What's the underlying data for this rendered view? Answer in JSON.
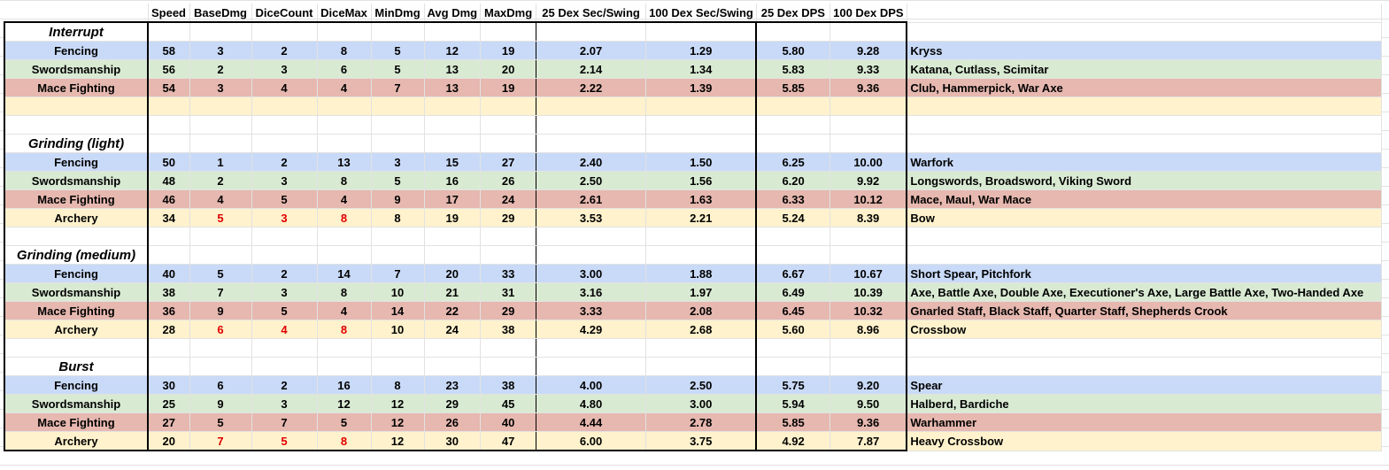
{
  "headers": [
    "",
    "Speed",
    "BaseDmg",
    "DiceCount",
    "DiceMax",
    "MinDmg",
    "Avg Dmg",
    "MaxDmg",
    "25 Dex Sec/Swing",
    "100 Dex Sec/Swing",
    "25 Dex DPS",
    "100 Dex DPS",
    ""
  ],
  "sections": [
    {
      "title": "Interrupt",
      "rows": [
        {
          "skill": "Fencing",
          "speed": "58",
          "base": "3",
          "count": "2",
          "max": "8",
          "min": "5",
          "avg": "12",
          "maxdmg": "19",
          "s25": "2.07",
          "s100": "1.29",
          "d25": "5.80",
          "d100": "9.28",
          "weapons": "Kryss"
        },
        {
          "skill": "Swordsmanship",
          "speed": "56",
          "base": "2",
          "count": "3",
          "max": "6",
          "min": "5",
          "avg": "13",
          "maxdmg": "20",
          "s25": "2.14",
          "s100": "1.34",
          "d25": "5.83",
          "d100": "9.33",
          "weapons": "Katana, Cutlass, Scimitar"
        },
        {
          "skill": "Mace Fighting",
          "speed": "54",
          "base": "3",
          "count": "4",
          "max": "4",
          "min": "7",
          "avg": "13",
          "maxdmg": "19",
          "s25": "2.22",
          "s100": "1.39",
          "d25": "5.85",
          "d100": "9.36",
          "weapons": "Club, Hammerpick, War Axe"
        },
        {
          "skill": "",
          "speed": "",
          "base": "",
          "count": "",
          "max": "",
          "min": "",
          "avg": "",
          "maxdmg": "",
          "s25": "",
          "s100": "",
          "d25": "",
          "d100": "",
          "weapons": ""
        }
      ]
    },
    {
      "title": "Grinding (light)",
      "rows": [
        {
          "skill": "Fencing",
          "speed": "50",
          "base": "1",
          "count": "2",
          "max": "13",
          "min": "3",
          "avg": "15",
          "maxdmg": "27",
          "s25": "2.40",
          "s100": "1.50",
          "d25": "6.25",
          "d100": "10.00",
          "weapons": "Warfork"
        },
        {
          "skill": "Swordsmanship",
          "speed": "48",
          "base": "2",
          "count": "3",
          "max": "8",
          "min": "5",
          "avg": "16",
          "maxdmg": "26",
          "s25": "2.50",
          "s100": "1.56",
          "d25": "6.20",
          "d100": "9.92",
          "weapons": "Longswords, Broadsword, Viking Sword"
        },
        {
          "skill": "Mace Fighting",
          "speed": "46",
          "base": "4",
          "count": "5",
          "max": "4",
          "min": "9",
          "avg": "17",
          "maxdmg": "24",
          "s25": "2.61",
          "s100": "1.63",
          "d25": "6.33",
          "d100": "10.12",
          "weapons": "Mace, Maul, War Mace"
        },
        {
          "skill": "Archery",
          "speed": "34",
          "base": "5",
          "count": "3",
          "max": "8",
          "min": "8",
          "avg": "19",
          "maxdmg": "29",
          "s25": "3.53",
          "s100": "2.21",
          "d25": "5.24",
          "d100": "8.39",
          "weapons": "Bow"
        }
      ]
    },
    {
      "title": "Grinding (medium)",
      "rows": [
        {
          "skill": "Fencing",
          "speed": "40",
          "base": "5",
          "count": "2",
          "max": "14",
          "min": "7",
          "avg": "20",
          "maxdmg": "33",
          "s25": "3.00",
          "s100": "1.88",
          "d25": "6.67",
          "d100": "10.67",
          "weapons": "Short Spear, Pitchfork"
        },
        {
          "skill": "Swordsmanship",
          "speed": "38",
          "base": "7",
          "count": "3",
          "max": "8",
          "min": "10",
          "avg": "21",
          "maxdmg": "31",
          "s25": "3.16",
          "s100": "1.97",
          "d25": "6.49",
          "d100": "10.39",
          "weapons": "Axe, Battle Axe, Double Axe, Executioner's Axe, Large Battle Axe, Two-Handed Axe"
        },
        {
          "skill": "Mace Fighting",
          "speed": "36",
          "base": "9",
          "count": "5",
          "max": "4",
          "min": "14",
          "avg": "22",
          "maxdmg": "29",
          "s25": "3.33",
          "s100": "2.08",
          "d25": "6.45",
          "d100": "10.32",
          "weapons": "Gnarled Staff, Black Staff, Quarter Staff, Shepherds Crook"
        },
        {
          "skill": "Archery",
          "speed": "28",
          "base": "6",
          "count": "4",
          "max": "8",
          "min": "10",
          "avg": "24",
          "maxdmg": "38",
          "s25": "4.29",
          "s100": "2.68",
          "d25": "5.60",
          "d100": "8.96",
          "weapons": "Crossbow"
        }
      ]
    },
    {
      "title": "Burst",
      "rows": [
        {
          "skill": "Fencing",
          "speed": "30",
          "base": "6",
          "count": "2",
          "max": "16",
          "min": "8",
          "avg": "23",
          "maxdmg": "38",
          "s25": "4.00",
          "s100": "2.50",
          "d25": "5.75",
          "d100": "9.20",
          "weapons": "Spear"
        },
        {
          "skill": "Swordsmanship",
          "speed": "25",
          "base": "9",
          "count": "3",
          "max": "12",
          "min": "12",
          "avg": "29",
          "maxdmg": "45",
          "s25": "4.80",
          "s100": "3.00",
          "d25": "5.94",
          "d100": "9.50",
          "weapons": "Halberd, Bardiche"
        },
        {
          "skill": "Mace Fighting",
          "speed": "27",
          "base": "5",
          "count": "7",
          "max": "5",
          "min": "12",
          "avg": "26",
          "maxdmg": "40",
          "s25": "4.44",
          "s100": "2.78",
          "d25": "5.85",
          "d100": "9.36",
          "weapons": "Warhammer"
        },
        {
          "skill": "Archery",
          "speed": "20",
          "base": "7",
          "count": "5",
          "max": "8",
          "min": "12",
          "avg": "30",
          "maxdmg": "47",
          "s25": "6.00",
          "s100": "3.75",
          "d25": "4.92",
          "d100": "7.87",
          "weapons": "Heavy Crossbow"
        }
      ]
    }
  ],
  "row_colors": [
    "blue",
    "green",
    "red",
    "yellow"
  ],
  "red_text_cells": [
    "archery.base",
    "archery.count",
    "archery.max"
  ],
  "colors": {
    "blue": "#c9daf8",
    "green": "#d9ead3",
    "red": "#e6b8af",
    "yellow": "#fff2cc",
    "highlight_text": "#e00000"
  }
}
